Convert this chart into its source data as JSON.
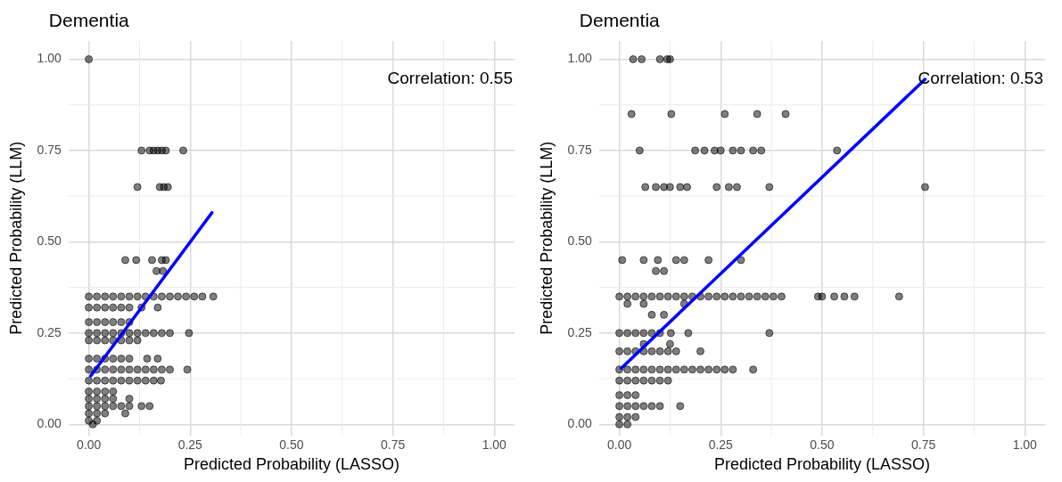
{
  "chart_data": [
    {
      "type": "scatter",
      "title": "Dementia",
      "xlabel": "Predicted Probability (LASSO)",
      "ylabel": "Predicted Probability (LLM)",
      "xlim": [
        -0.05,
        1.05
      ],
      "ylim": [
        -0.03,
        1.05
      ],
      "xticks": [
        {
          "value": 0,
          "label": "0.00"
        },
        {
          "value": 0.25,
          "label": "0.25"
        },
        {
          "value": 0.5,
          "label": "0.50"
        },
        {
          "value": 0.75,
          "label": "0.75"
        },
        {
          "value": 1,
          "label": "1.00"
        }
      ],
      "yticks": [
        {
          "value": 0,
          "label": "0.00"
        },
        {
          "value": 0.25,
          "label": "0.25"
        },
        {
          "value": 0.5,
          "label": "0.50"
        },
        {
          "value": 0.75,
          "label": "0.75"
        },
        {
          "value": 1,
          "label": "1.00"
        }
      ],
      "grid": true,
      "legend": false,
      "annotations": [
        "Correlation: 0.55"
      ],
      "series": [
        {
          "marker": "circle",
          "color": "#000000",
          "x": [
            0,
            0.13,
            0.15,
            0.16,
            0.17,
            0.18,
            0.19,
            0.233,
            0.12,
            0.175,
            0.185,
            0.195,
            0.09,
            0.117,
            0.156,
            0.18,
            0.19,
            0.167,
            0.183,
            0,
            0.02,
            0.04,
            0.06,
            0.08,
            0.1,
            0.12,
            0.14,
            0.16,
            0.18,
            0.2,
            0.22,
            0.24,
            0.26,
            0.28,
            0.307,
            0,
            0.02,
            0.04,
            0.06,
            0.08,
            0.1,
            0.13,
            0.17,
            0,
            0.02,
            0.04,
            0.06,
            0.08,
            0.1,
            0,
            0.02,
            0.04,
            0.06,
            0.08,
            0.1,
            0.12,
            0.14,
            0.16,
            0.18,
            0.2,
            0.247,
            0,
            0.02,
            0.04,
            0.06,
            0.08,
            0.1,
            0.12,
            0,
            0.02,
            0.04,
            0.06,
            0.08,
            0.1,
            0.144,
            0.17,
            0,
            0.02,
            0.04,
            0.06,
            0.08,
            0.1,
            0.12,
            0.14,
            0.16,
            0.18,
            0.2,
            0.243,
            0,
            0.02,
            0.04,
            0.06,
            0.08,
            0.1,
            0.12,
            0.14,
            0.16,
            0.178,
            0,
            0.02,
            0.04,
            0.06,
            0,
            0.02,
            0.04,
            0.06,
            0.1,
            0,
            0.02,
            0.04,
            0.06,
            0.08,
            0.1,
            0.13,
            0.15,
            0,
            0.02,
            0.04,
            0.09,
            0,
            0.02,
            0.01
          ],
          "values": [
            1,
            0.75,
            0.75,
            0.75,
            0.75,
            0.75,
            0.75,
            0.75,
            0.65,
            0.65,
            0.65,
            0.65,
            0.45,
            0.45,
            0.45,
            0.45,
            0.45,
            0.42,
            0.42,
            0.35,
            0.35,
            0.35,
            0.35,
            0.35,
            0.35,
            0.35,
            0.35,
            0.35,
            0.35,
            0.35,
            0.35,
            0.35,
            0.35,
            0.35,
            0.35,
            0.32,
            0.32,
            0.32,
            0.32,
            0.32,
            0.32,
            0.32,
            0.32,
            0.28,
            0.28,
            0.28,
            0.28,
            0.28,
            0.28,
            0.25,
            0.25,
            0.25,
            0.25,
            0.25,
            0.25,
            0.25,
            0.25,
            0.25,
            0.25,
            0.25,
            0.25,
            0.23,
            0.23,
            0.23,
            0.23,
            0.23,
            0.23,
            0.23,
            0.18,
            0.18,
            0.18,
            0.18,
            0.18,
            0.18,
            0.18,
            0.18,
            0.15,
            0.15,
            0.15,
            0.15,
            0.15,
            0.15,
            0.15,
            0.15,
            0.15,
            0.15,
            0.15,
            0.15,
            0.12,
            0.12,
            0.12,
            0.12,
            0.12,
            0.12,
            0.12,
            0.12,
            0.12,
            0.12,
            0.09,
            0.09,
            0.09,
            0.09,
            0.07,
            0.07,
            0.07,
            0.07,
            0.07,
            0.05,
            0.05,
            0.05,
            0.05,
            0.05,
            0.05,
            0.05,
            0.05,
            0.03,
            0.03,
            0.03,
            0.03,
            0.01,
            0.01,
            0
          ]
        },
        {
          "type": "line",
          "color": "#0000ff",
          "x": [
            0.005,
            0.304
          ],
          "values": [
            0.133,
            0.58
          ]
        }
      ]
    },
    {
      "type": "scatter",
      "title": "Dementia",
      "xlabel": "Predicted Probability (LASSO)",
      "ylabel": "Predicted Probability (LLM)",
      "xlim": [
        -0.05,
        1.05
      ],
      "ylim": [
        -0.03,
        1.05
      ],
      "xticks": [
        {
          "value": 0,
          "label": "0.00"
        },
        {
          "value": 0.25,
          "label": "0.25"
        },
        {
          "value": 0.5,
          "label": "0.50"
        },
        {
          "value": 0.75,
          "label": "0.75"
        },
        {
          "value": 1,
          "label": "1.00"
        }
      ],
      "yticks": [
        {
          "value": 0,
          "label": "0.00"
        },
        {
          "value": 0.25,
          "label": "0.25"
        },
        {
          "value": 0.5,
          "label": "0.50"
        },
        {
          "value": 0.75,
          "label": "0.75"
        },
        {
          "value": 1,
          "label": "1.00"
        }
      ],
      "grid": true,
      "legend": false,
      "annotations": [
        "Correlation: 0.53"
      ],
      "series": [
        {
          "marker": "circle",
          "color": "#000000",
          "x": [
            0.034,
            0.055,
            0.1,
            0.118,
            0.125,
            0.03,
            0.128,
            0.26,
            0.34,
            0.41,
            0.05,
            0.187,
            0.21,
            0.235,
            0.25,
            0.28,
            0.3,
            0.33,
            0.35,
            0.537,
            0.064,
            0.09,
            0.11,
            0.125,
            0.15,
            0.167,
            0.24,
            0.27,
            0.29,
            0.37,
            0.754,
            0.007,
            0.06,
            0.095,
            0.14,
            0.16,
            0.22,
            0.3,
            0.09,
            0.11,
            0,
            0.02,
            0.04,
            0.06,
            0.08,
            0.1,
            0.12,
            0.14,
            0.16,
            0.18,
            0.2,
            0.22,
            0.24,
            0.26,
            0.28,
            0.3,
            0.32,
            0.34,
            0.36,
            0.38,
            0.4,
            0.49,
            0.5,
            0.53,
            0.555,
            0.58,
            0.69,
            0.02,
            0.06,
            0.16,
            0.08,
            0.11,
            0,
            0.02,
            0.04,
            0.06,
            0.08,
            0.1,
            0.127,
            0.17,
            0.37,
            0.06,
            0.125,
            0,
            0.02,
            0.04,
            0.06,
            0.08,
            0.1,
            0.12,
            0.14,
            0.2,
            0,
            0.02,
            0.04,
            0.06,
            0.08,
            0.1,
            0.12,
            0.14,
            0.16,
            0.18,
            0.2,
            0.22,
            0.24,
            0.26,
            0.28,
            0.33,
            0,
            0.02,
            0.04,
            0.06,
            0.08,
            0.1,
            0.12,
            0,
            0.02,
            0.04,
            0,
            0.02,
            0.04,
            0.06,
            0.08,
            0.1,
            0.15,
            0,
            0.02,
            0.04,
            0,
            0.02
          ],
          "values": [
            1,
            1,
            1,
            1,
            1,
            0.85,
            0.85,
            0.85,
            0.85,
            0.85,
            0.75,
            0.75,
            0.75,
            0.75,
            0.75,
            0.75,
            0.75,
            0.75,
            0.75,
            0.75,
            0.65,
            0.65,
            0.65,
            0.65,
            0.65,
            0.65,
            0.65,
            0.65,
            0.65,
            0.65,
            0.65,
            0.45,
            0.45,
            0.45,
            0.45,
            0.45,
            0.45,
            0.45,
            0.42,
            0.42,
            0.35,
            0.35,
            0.35,
            0.35,
            0.35,
            0.35,
            0.35,
            0.35,
            0.35,
            0.35,
            0.35,
            0.35,
            0.35,
            0.35,
            0.35,
            0.35,
            0.35,
            0.35,
            0.35,
            0.35,
            0.35,
            0.35,
            0.35,
            0.35,
            0.35,
            0.35,
            0.35,
            0.33,
            0.33,
            0.33,
            0.3,
            0.3,
            0.25,
            0.25,
            0.25,
            0.25,
            0.25,
            0.25,
            0.25,
            0.25,
            0.25,
            0.22,
            0.22,
            0.2,
            0.2,
            0.2,
            0.2,
            0.2,
            0.2,
            0.2,
            0.2,
            0.2,
            0.15,
            0.15,
            0.15,
            0.15,
            0.15,
            0.15,
            0.15,
            0.15,
            0.15,
            0.15,
            0.15,
            0.15,
            0.15,
            0.15,
            0.15,
            0.15,
            0.12,
            0.12,
            0.12,
            0.12,
            0.12,
            0.12,
            0.12,
            0.08,
            0.08,
            0.08,
            0.05,
            0.05,
            0.05,
            0.05,
            0.05,
            0.05,
            0.05,
            0.02,
            0.02,
            0.02,
            0,
            0
          ]
        },
        {
          "type": "line",
          "color": "#0000ff",
          "x": [
            0.005,
            0.754
          ],
          "values": [
            0.154,
            0.945
          ]
        }
      ]
    }
  ]
}
